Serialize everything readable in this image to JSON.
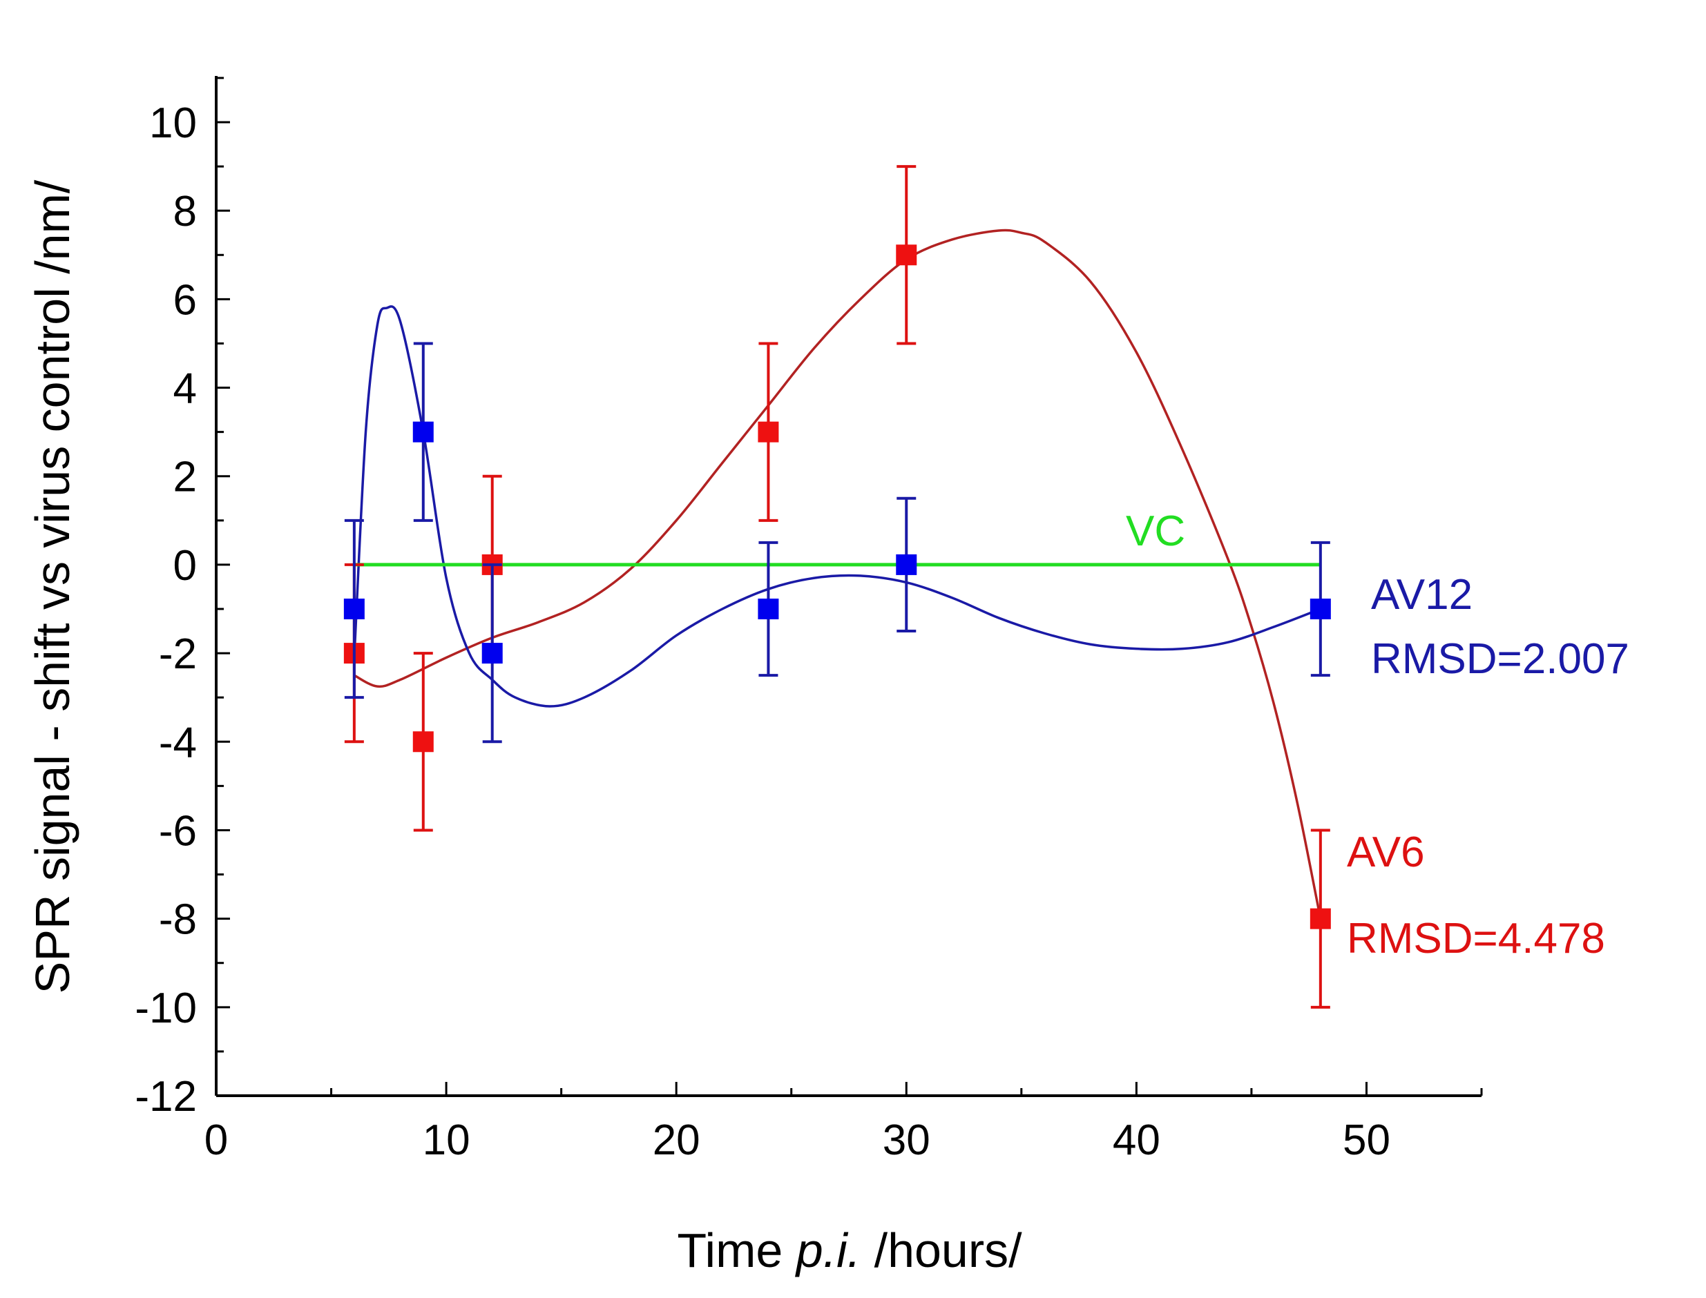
{
  "chart_data": {
    "type": "scatter",
    "title": "",
    "xlabel": {
      "prefix": "Time ",
      "italic": "p.i.",
      "suffix": " /hours/"
    },
    "ylabel": "SPR signal - shift vs virus control /nm/",
    "xlim": [
      0,
      55
    ],
    "ylim": [
      -12,
      11
    ],
    "xticks": [
      0,
      10,
      20,
      30,
      40,
      50
    ],
    "xtick_labels": [
      "0",
      "10",
      "20",
      "30",
      "40",
      "50"
    ],
    "yticks": [
      -12,
      -10,
      -8,
      -6,
      -4,
      -2,
      0,
      2,
      4,
      6,
      8,
      10
    ],
    "ytick_labels": [
      "-12",
      "-10",
      "-8",
      "-6",
      "-4",
      "-2",
      "0",
      "2",
      "4",
      "6",
      "8",
      "10"
    ],
    "grid": false,
    "vc_line": {
      "name": "VC",
      "y": 0,
      "x_range": [
        6,
        48
      ],
      "color": "#22dd22"
    },
    "series": [
      {
        "name": "AV12",
        "label_lines": [
          "AV12",
          "RMSD=2.007"
        ],
        "color": "#1a1aa6",
        "marker_color": "#0000ee",
        "x": [
          6,
          9,
          12,
          24,
          30,
          48
        ],
        "y": [
          -1,
          3,
          -2,
          -1,
          0,
          -1
        ],
        "err": [
          2,
          2,
          2,
          1.5,
          1.5,
          1.5
        ],
        "fit": [
          [
            6,
            -2.1
          ],
          [
            6.5,
            3.0
          ],
          [
            7,
            5.4
          ],
          [
            7.4,
            5.8
          ],
          [
            8,
            5.5
          ],
          [
            9,
            3.0
          ],
          [
            10,
            -0.3
          ],
          [
            11,
            -2.0
          ],
          [
            12,
            -2.6
          ],
          [
            13,
            -3.0
          ],
          [
            14.5,
            -3.2
          ],
          [
            16,
            -3.0
          ],
          [
            18,
            -2.4
          ],
          [
            20,
            -1.6
          ],
          [
            22,
            -1.0
          ],
          [
            24,
            -0.55
          ],
          [
            26,
            -0.3
          ],
          [
            28,
            -0.25
          ],
          [
            30,
            -0.4
          ],
          [
            32,
            -0.75
          ],
          [
            34,
            -1.2
          ],
          [
            36,
            -1.55
          ],
          [
            38,
            -1.8
          ],
          [
            40,
            -1.9
          ],
          [
            42,
            -1.9
          ],
          [
            44,
            -1.75
          ],
          [
            46,
            -1.4
          ],
          [
            48,
            -1.0
          ]
        ]
      },
      {
        "name": "AV6",
        "label_lines": [
          "AV6",
          "RMSD=4.478"
        ],
        "color": "#b22222",
        "marker_color": "#ee1111",
        "x": [
          6,
          9,
          12,
          24,
          30,
          48
        ],
        "y": [
          -2,
          -4,
          0,
          3,
          7,
          -8
        ],
        "err": [
          2,
          2,
          2,
          2,
          2,
          2
        ],
        "fit": [
          [
            6,
            -2.5
          ],
          [
            7,
            -2.75
          ],
          [
            8,
            -2.6
          ],
          [
            10,
            -2.1
          ],
          [
            12,
            -1.65
          ],
          [
            14,
            -1.3
          ],
          [
            16,
            -0.85
          ],
          [
            18,
            -0.1
          ],
          [
            20,
            1.0
          ],
          [
            22,
            2.3
          ],
          [
            24,
            3.6
          ],
          [
            26,
            4.9
          ],
          [
            28,
            6.0
          ],
          [
            30,
            6.9
          ],
          [
            32,
            7.35
          ],
          [
            34,
            7.55
          ],
          [
            35,
            7.5
          ],
          [
            36,
            7.3
          ],
          [
            38,
            6.4
          ],
          [
            40,
            4.8
          ],
          [
            42,
            2.6
          ],
          [
            44,
            0.1
          ],
          [
            45,
            -1.4
          ],
          [
            46,
            -3.2
          ],
          [
            47,
            -5.4
          ],
          [
            48,
            -8.0
          ]
        ]
      }
    ],
    "annotations": [
      "VC",
      "AV12",
      "RMSD=2.007",
      "AV6",
      "RMSD=4.478"
    ]
  }
}
